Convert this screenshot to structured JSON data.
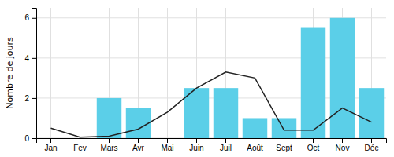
{
  "chart_data": {
    "type": "bar",
    "categories": [
      "Jan",
      "Fev",
      "Mars",
      "Avr",
      "Mai",
      "Juin",
      "Juil",
      "Août",
      "Sept",
      "Oct",
      "Nov",
      "Déc"
    ],
    "series": [
      {
        "type": "bar",
        "color": "#5BCFE8",
        "values": [
          0,
          0,
          2.0,
          1.5,
          0,
          2.5,
          2.5,
          1.0,
          1.0,
          5.5,
          6.0,
          2.5
        ]
      },
      {
        "type": "line",
        "color": "#222222",
        "values": [
          0.5,
          0.05,
          0.1,
          0.45,
          1.3,
          2.5,
          3.3,
          3.0,
          0.4,
          0.4,
          1.5,
          0.8
        ]
      }
    ],
    "ylabel": "Nombre de jours",
    "ylim": [
      0,
      6.5
    ],
    "yticks": [
      0,
      2,
      4,
      6
    ],
    "grid": true
  }
}
